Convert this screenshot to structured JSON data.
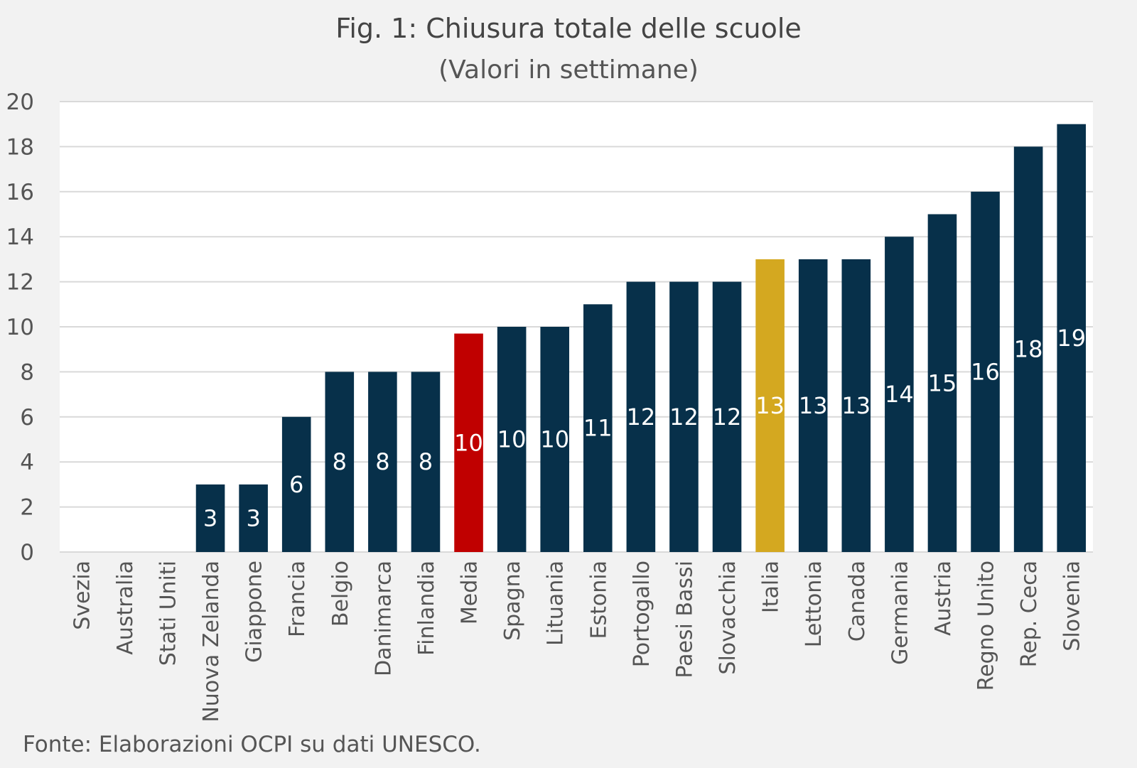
{
  "chart_data": {
    "type": "bar",
    "title": "Fig. 1: Chiusura totale delle scuole",
    "subtitle": "(Valori in settimane)",
    "source": "Fonte: Elaborazioni OCPI su dati UNESCO.",
    "categories": [
      "Svezia",
      "Australia",
      "Stati Uniti",
      "Nuova Zelanda",
      "Giappone",
      "Francia",
      "Belgio",
      "Danimarca",
      "Finlandia",
      "Media",
      "Spagna",
      "Lituania",
      "Estonia",
      "Portogallo",
      "Paesi Bassi",
      "Slovacchia",
      "Italia",
      "Lettonia",
      "Canada",
      "Germania",
      "Austria",
      "Regno Unito",
      "Rep. Ceca",
      "Slovenia"
    ],
    "values": [
      0,
      0,
      0,
      3,
      3,
      6,
      8,
      8,
      8,
      9.7,
      10,
      10,
      11,
      12,
      12,
      12,
      13,
      13,
      13,
      14,
      15,
      16,
      18,
      19
    ],
    "data_labels": [
      "",
      "",
      "",
      "3",
      "3",
      "6",
      "8",
      "8",
      "8",
      "10",
      "10",
      "10",
      "11",
      "12",
      "12",
      "12",
      "13",
      "13",
      "13",
      "14",
      "15",
      "16",
      "18",
      "19"
    ],
    "ylim": [
      0,
      20
    ],
    "yticks": [
      0,
      2,
      4,
      6,
      8,
      10,
      12,
      14,
      16,
      18,
      20
    ],
    "xlabel": "",
    "ylabel": "",
    "grid": true,
    "legend": "none",
    "colors": {
      "default": "#07304a",
      "Media": "#c00000",
      "Italia": "#d4a820",
      "plot_background": "#ffffff",
      "page_background": "#f2f2f2",
      "gridline": "#d9d9d9",
      "label_text": "#ffffff",
      "axis_text": "#555555"
    }
  }
}
